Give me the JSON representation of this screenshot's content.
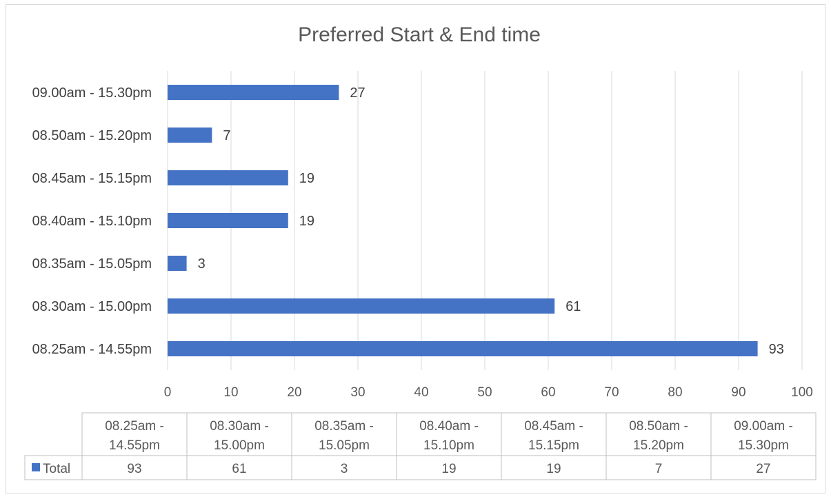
{
  "chart_data": {
    "type": "bar",
    "orientation": "horizontal",
    "title": "Preferred Start & End time",
    "categories": [
      "08.25am - 14.55pm",
      "08.30am - 15.00pm",
      "08.35am - 15.05pm",
      "08.40am - 15.10pm",
      "08.45am - 15.15pm",
      "08.50am - 15.20pm",
      "09.00am - 15.30pm"
    ],
    "series": [
      {
        "name": "Total",
        "values": [
          93,
          61,
          3,
          19,
          19,
          7,
          27
        ],
        "color": "#4472C4"
      }
    ],
    "xlim": [
      0,
      100
    ],
    "xticks": [
      0,
      10,
      20,
      30,
      40,
      50,
      60,
      70,
      80,
      90,
      100
    ],
    "grid": true,
    "data_labels": true,
    "data_table": {
      "headers_line1": [
        "08.25am -",
        "08.30am -",
        "08.35am -",
        "08.40am -",
        "08.45am -",
        "08.50am -",
        "09.00am -"
      ],
      "headers_line2": [
        "14.55pm",
        "15.00pm",
        "15.05pm",
        "15.10pm",
        "15.15pm",
        "15.20pm",
        "15.30pm"
      ],
      "row_label": "Total",
      "values": [
        "93",
        "61",
        "3",
        "19",
        "19",
        "7",
        "27"
      ]
    }
  }
}
